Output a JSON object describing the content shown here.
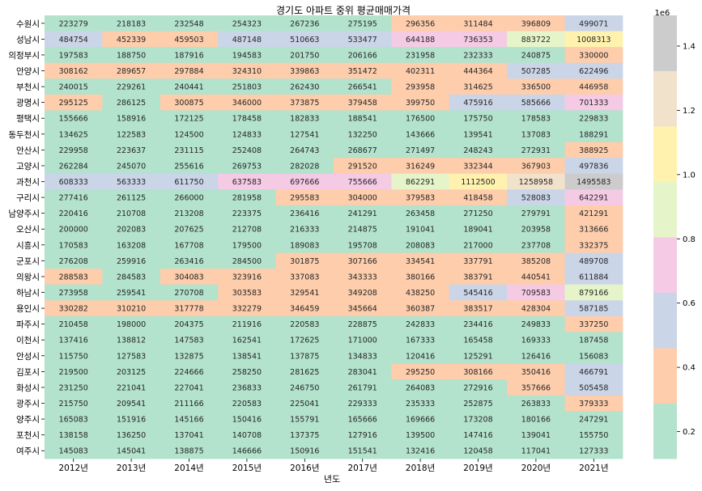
{
  "chart_data": {
    "type": "heatmap",
    "title": "경기도 아파트 중위 평균매매가격",
    "xlabel": "년도",
    "ylabel": "",
    "columns": [
      "2012년",
      "2013년",
      "2014년",
      "2015년",
      "2016년",
      "2017년",
      "2018년",
      "2019년",
      "2020년",
      "2021년"
    ],
    "rows": [
      "수원시",
      "성남시",
      "의정부시",
      "안양시",
      "부천시",
      "광명시",
      "평택시",
      "동두천시",
      "안산시",
      "고양시",
      "과천시",
      "구리시",
      "남양주시",
      "오산시",
      "시흥시",
      "군포시",
      "의왕시",
      "하남시",
      "용인시",
      "파주시",
      "이천시",
      "안성시",
      "김포시",
      "화성시",
      "광주시",
      "양주시",
      "포천시",
      "여주시"
    ],
    "values": [
      [
        223279,
        218183,
        232548,
        254323,
        267236,
        275195,
        296356,
        311484,
        396809,
        499071
      ],
      [
        484754,
        452339,
        459503,
        487148,
        510663,
        533477,
        644188,
        736353,
        883722,
        1008313
      ],
      [
        197583,
        188750,
        187916,
        194583,
        201750,
        206166,
        231958,
        232333,
        240875,
        330000
      ],
      [
        308162,
        289657,
        297884,
        324310,
        339863,
        351472,
        402311,
        444364,
        507285,
        622496
      ],
      [
        240015,
        229261,
        240441,
        251803,
        262430,
        266541,
        293958,
        314625,
        336500,
        446958
      ],
      [
        295125,
        286125,
        300875,
        346000,
        373875,
        379458,
        399750,
        475916,
        585666,
        701333
      ],
      [
        155666,
        158916,
        172125,
        178458,
        182833,
        188541,
        176500,
        175750,
        178583,
        229833
      ],
      [
        134625,
        122583,
        124500,
        124833,
        127541,
        132250,
        143666,
        139541,
        137083,
        188291
      ],
      [
        229958,
        223637,
        231115,
        252408,
        264743,
        268677,
        271497,
        248243,
        272931,
        388925
      ],
      [
        262284,
        245070,
        255616,
        269753,
        282028,
        291520,
        316249,
        332344,
        367903,
        497836
      ],
      [
        608333,
        563333,
        611750,
        637583,
        697666,
        755666,
        862291,
        1112500,
        1258958,
        1495583
      ],
      [
        277416,
        261125,
        266000,
        281958,
        295583,
        304000,
        379583,
        418458,
        528083,
        642291
      ],
      [
        220416,
        210708,
        213208,
        223375,
        236416,
        241291,
        263458,
        271250,
        279791,
        421291
      ],
      [
        200000,
        202083,
        207625,
        212708,
        216333,
        214875,
        191041,
        189041,
        203958,
        313666
      ],
      [
        170583,
        163208,
        167708,
        179500,
        189083,
        195708,
        208083,
        217000,
        237708,
        332375
      ],
      [
        276208,
        259916,
        263416,
        284500,
        301875,
        307166,
        334541,
        337791,
        385208,
        489708
      ],
      [
        288583,
        284583,
        304083,
        323916,
        337083,
        343333,
        380166,
        383791,
        440541,
        611884
      ],
      [
        273958,
        259541,
        270708,
        303583,
        329541,
        349208,
        438250,
        545416,
        709583,
        879166
      ],
      [
        330282,
        310210,
        317778,
        332279,
        346459,
        345664,
        360387,
        383517,
        428304,
        587185
      ],
      [
        210458,
        198000,
        204375,
        211916,
        220583,
        228875,
        242833,
        234416,
        249833,
        337250
      ],
      [
        137416,
        138812,
        147583,
        162541,
        172625,
        171000,
        167333,
        165458,
        169333,
        187458
      ],
      [
        115750,
        127583,
        132875,
        138541,
        137875,
        134833,
        120416,
        125291,
        126416,
        156083
      ],
      [
        219500,
        203125,
        224666,
        258250,
        281625,
        283041,
        295250,
        308166,
        350416,
        466791
      ],
      [
        231250,
        221041,
        227041,
        236833,
        246750,
        261791,
        264083,
        272916,
        357666,
        505458
      ],
      [
        215750,
        209541,
        211166,
        220583,
        225041,
        229333,
        235333,
        252875,
        263833,
        379333
      ],
      [
        165083,
        151916,
        145166,
        150416,
        155791,
        165666,
        169666,
        173208,
        180166,
        247291
      ],
      [
        138158,
        136250,
        137041,
        140708,
        137375,
        127916,
        139500,
        147416,
        139041,
        155750
      ],
      [
        145083,
        145041,
        138875,
        146666,
        150916,
        151541,
        132416,
        120458,
        117041,
        127333
      ]
    ],
    "colorbar": {
      "colormap": "Pastel2",
      "vmin": 115750,
      "vmax": 1495583,
      "offset_label": "1e6",
      "ticks": [
        0.2,
        0.4,
        0.6,
        0.8,
        1.0,
        1.2,
        1.4
      ],
      "tick_labels": [
        "0.2",
        "0.4",
        "0.6",
        "0.8",
        "1.0",
        "1.2",
        "1.4"
      ],
      "colors": [
        "#b3e2cd",
        "#fdcdac",
        "#cbd5e8",
        "#f4cae4",
        "#e6f5c9",
        "#fff2ae",
        "#f1e2cc",
        "#cccccc"
      ]
    },
    "annotations": true,
    "grid": false,
    "legend": "colorbar-right"
  }
}
